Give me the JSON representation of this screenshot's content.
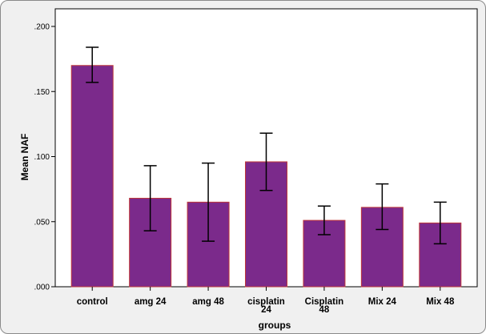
{
  "chart_data": {
    "type": "bar",
    "title": "",
    "xlabel": "groups",
    "ylabel": "Mean NAF",
    "ylim": [
      0,
      0.2
    ],
    "yticks": [
      ".000",
      ".050",
      ".100",
      ".150",
      ".200"
    ],
    "ytick_values": [
      0,
      0.05,
      0.1,
      0.15,
      0.2
    ],
    "categories": [
      [
        "control"
      ],
      [
        "amg 24"
      ],
      [
        "amg 48"
      ],
      [
        "cisplatin",
        "24"
      ],
      [
        "Cisplatin",
        "48"
      ],
      [
        "Mix 24"
      ],
      [
        "Mix 48"
      ]
    ],
    "values": [
      0.17,
      0.068,
      0.065,
      0.096,
      0.051,
      0.061,
      0.049
    ],
    "error_low": [
      0.157,
      0.043,
      0.035,
      0.074,
      0.04,
      0.044,
      0.033
    ],
    "error_high": [
      0.184,
      0.093,
      0.095,
      0.118,
      0.062,
      0.079,
      0.065
    ],
    "bar_color": "#7b2a8b",
    "bar_edge_color": "#c0393b",
    "plot_background": "#ffffff",
    "chart_background": "#f0f0f0",
    "grid": false,
    "legend": "none"
  }
}
